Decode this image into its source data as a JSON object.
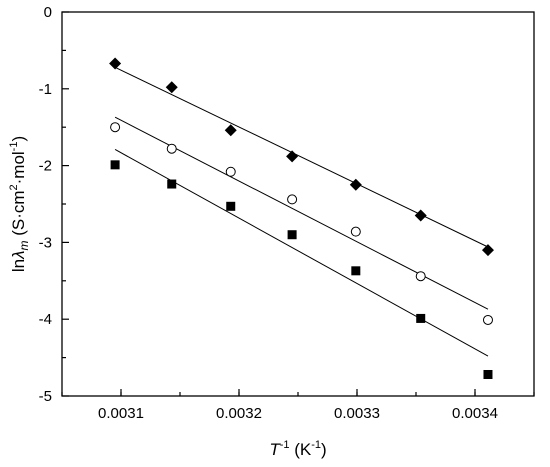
{
  "chart_data": {
    "type": "scatter",
    "title": "",
    "xlabel": {
      "base": "T",
      "sup": "-1",
      "unit": " (K",
      "unit_sup": "-1",
      "close": ")"
    },
    "ylabel": {
      "prefix": "ln",
      "lambda": "λ",
      "sub": "m",
      "unit_open": " (S·cm",
      "sup1": "2",
      "mid": "·mol",
      "sup2": "-1",
      "close": ")"
    },
    "xlim": [
      0.00305,
      0.00345
    ],
    "ylim": [
      -5,
      0
    ],
    "xticks": [
      0.0031,
      0.0032,
      0.0033,
      0.0034
    ],
    "xtick_labels": [
      "0.0031",
      "0.0032",
      "0.0033",
      "0.0034"
    ],
    "yticks": [
      0,
      -1,
      -2,
      -3,
      -4,
      -5
    ],
    "ytick_labels": [
      "0",
      "-1",
      "-2",
      "-3",
      "-4",
      "-5"
    ],
    "grid": false,
    "legend": "none",
    "series": [
      {
        "marker": "diamond-filled",
        "x": [
          0.003095,
          0.003143,
          0.003193,
          0.003245,
          0.003299,
          0.003354,
          0.003411
        ],
        "y": [
          -0.67,
          -0.98,
          -1.54,
          -1.88,
          -2.25,
          -2.65,
          -3.1
        ],
        "fit": {
          "x": [
            0.003095,
            0.003411
          ],
          "y": [
            -0.72,
            -3.06
          ]
        }
      },
      {
        "marker": "circle-open",
        "x": [
          0.003095,
          0.003143,
          0.003193,
          0.003245,
          0.003299,
          0.003354,
          0.003411
        ],
        "y": [
          -1.5,
          -1.78,
          -2.08,
          -2.44,
          -2.86,
          -3.44,
          -4.01
        ],
        "fit": {
          "x": [
            0.003095,
            0.003411
          ],
          "y": [
            -1.37,
            -3.87
          ]
        }
      },
      {
        "marker": "square-filled",
        "x": [
          0.003095,
          0.003143,
          0.003193,
          0.003245,
          0.003299,
          0.003354,
          0.003411
        ],
        "y": [
          -1.99,
          -2.24,
          -2.53,
          -2.9,
          -3.37,
          -3.99,
          -4.72
        ],
        "fit": {
          "x": [
            0.003095,
            0.003411
          ],
          "y": [
            -1.79,
            -4.48
          ]
        }
      }
    ]
  }
}
